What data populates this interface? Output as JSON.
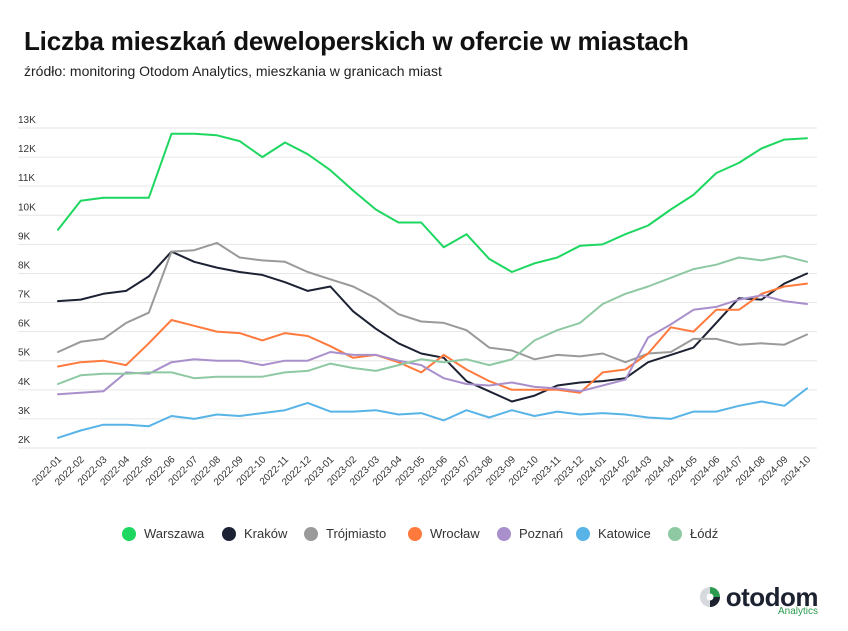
{
  "chart_data": {
    "type": "line",
    "title": "Liczba mieszkań deweloperskich w ofercie w miastach",
    "subtitle": "źródło: monitoring Otodom Analytics, mieszkania w granicach miast",
    "x": [
      "2022-01",
      "2022-02",
      "2022-03",
      "2022-04",
      "2022-05",
      "2022-06",
      "2022-07",
      "2022-08",
      "2022-09",
      "2022-10",
      "2022-11",
      "2022-12",
      "2023-01",
      "2023-02",
      "2023-03",
      "2023-04",
      "2023-05",
      "2023-06",
      "2023-07",
      "2023-08",
      "2023-09",
      "2023-10",
      "2023-11",
      "2023-12",
      "2024-01",
      "2024-02",
      "2024-03",
      "2024-04",
      "2024-05",
      "2024-06",
      "2024-07",
      "2024-08",
      "2024-09",
      "2024-10"
    ],
    "yticks": [
      2000,
      3000,
      4000,
      5000,
      6000,
      7000,
      8000,
      9000,
      10000,
      11000,
      12000,
      13000
    ],
    "ytick_labels": [
      "2K",
      "3K",
      "4K",
      "5K",
      "6K",
      "7K",
      "8K",
      "9K",
      "10K",
      "11K",
      "12K",
      "13K"
    ],
    "ylim": [
      2000,
      13000
    ],
    "grid": true,
    "legend_position": "bottom",
    "series": [
      {
        "name": "Warszawa",
        "color": "#1ed760",
        "values": [
          9500,
          10500,
          10600,
          10600,
          10600,
          12800,
          12800,
          12750,
          12550,
          12000,
          12500,
          12100,
          11550,
          10850,
          10200,
          9750,
          9750,
          8900,
          9350,
          8500,
          8050,
          8350,
          8550,
          8950,
          9000,
          9350,
          9650,
          10200,
          10700,
          11450,
          11800,
          12300,
          12600,
          12650
        ]
      },
      {
        "name": "Kraków",
        "color": "#1c2233",
        "values": [
          7050,
          7100,
          7300,
          7400,
          7900,
          8750,
          8400,
          8200,
          8050,
          7950,
          7700,
          7400,
          7550,
          6700,
          6100,
          5600,
          5250,
          5100,
          4300,
          3950,
          3600,
          3800,
          4150,
          4250,
          4300,
          4400,
          4950,
          5200,
          5450,
          6300,
          7150,
          7100,
          7650,
          8000
        ]
      },
      {
        "name": "Trójmiasto",
        "color": "#9a9a9a",
        "values": [
          5300,
          5650,
          5750,
          6300,
          6650,
          8750,
          8800,
          9050,
          8550,
          8450,
          8400,
          8050,
          7800,
          7550,
          7150,
          6600,
          6350,
          6300,
          6050,
          5450,
          5350,
          5050,
          5200,
          5150,
          5250,
          4950,
          5250,
          5300,
          5750,
          5750,
          5550,
          5600,
          5550,
          5900
        ]
      },
      {
        "name": "Wrocław",
        "color": "#ff7a3c",
        "values": [
          4800,
          4950,
          5000,
          4850,
          5600,
          6400,
          6200,
          6000,
          5950,
          5700,
          5950,
          5850,
          5500,
          5100,
          5200,
          4950,
          4600,
          5200,
          4700,
          4300,
          4000,
          4000,
          4000,
          3900,
          4600,
          4700,
          5250,
          6150,
          6000,
          6750,
          6750,
          7300,
          7550,
          7650
        ]
      },
      {
        "name": "Poznań",
        "color": "#a98fcb",
        "values": [
          3850,
          3900,
          3950,
          4600,
          4550,
          4950,
          5050,
          5000,
          5000,
          4850,
          5000,
          5000,
          5300,
          5200,
          5200,
          5000,
          4850,
          4400,
          4200,
          4150,
          4250,
          4100,
          4050,
          3950,
          4150,
          4350,
          5800,
          6250,
          6750,
          6850,
          7100,
          7250,
          7050,
          6950
        ]
      },
      {
        "name": "Katowice",
        "color": "#58b4e6",
        "values": [
          2350,
          2600,
          2800,
          2800,
          2750,
          3100,
          3000,
          3150,
          3100,
          3200,
          3300,
          3550,
          3250,
          3250,
          3300,
          3150,
          3200,
          2950,
          3300,
          3050,
          3300,
          3100,
          3250,
          3150,
          3200,
          3150,
          3050,
          3000,
          3250,
          3250,
          3450,
          3600,
          3450,
          4050
        ]
      },
      {
        "name": "Łódź",
        "color": "#8fc9a3",
        "values": [
          4200,
          4500,
          4550,
          4550,
          4600,
          4600,
          4400,
          4450,
          4450,
          4450,
          4600,
          4650,
          4900,
          4750,
          4650,
          4850,
          5050,
          4950,
          5050,
          4850,
          5050,
          5700,
          6050,
          6300,
          6950,
          7300,
          7550,
          7850,
          8150,
          8300,
          8550,
          8450,
          8600,
          8400
        ]
      }
    ]
  },
  "logo": {
    "word": "otodom",
    "sub": "Analytics",
    "mark_color": "#2b9b4e"
  }
}
